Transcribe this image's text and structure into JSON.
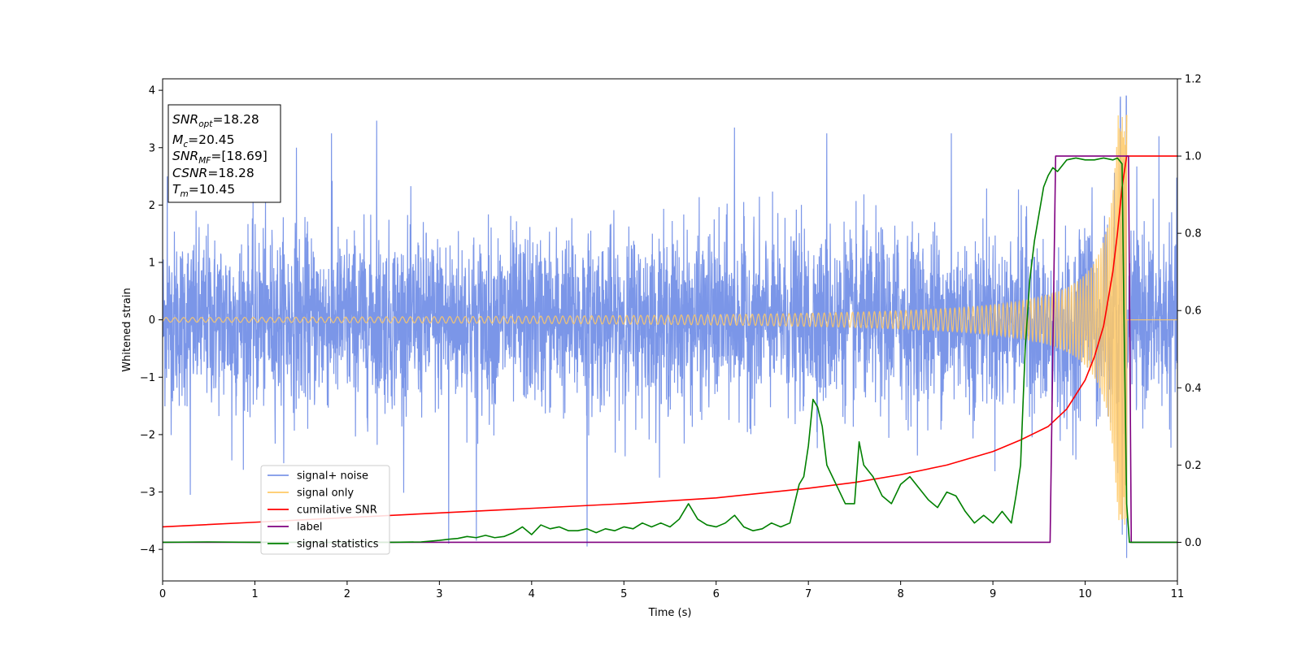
{
  "chart_data": {
    "type": "line",
    "title": "",
    "xlabel": "Time (s)",
    "ylabel": "Whitened strain",
    "y2label": "",
    "xlim": [
      0,
      11
    ],
    "ylim": [
      -4.55,
      4.2
    ],
    "y2lim": [
      -0.1,
      1.2
    ],
    "xticks": [
      0,
      1,
      2,
      3,
      4,
      5,
      6,
      7,
      8,
      9,
      10,
      11
    ],
    "yticks": [
      -4,
      -3,
      -2,
      -1,
      0,
      1,
      2,
      3,
      4
    ],
    "y2ticks": [
      "0.0",
      "0.2",
      "0.4",
      "0.6",
      "0.8",
      "1.0",
      "1.2"
    ],
    "grid": false,
    "legend_position": "lower-left",
    "annotation": {
      "lines": [
        {
          "main": "SNR",
          "sub": "opt",
          "rest": "=18.28"
        },
        {
          "main": "M",
          "sub": "c",
          "rest": "=20.45"
        },
        {
          "main": "SNR",
          "sub": "MF",
          "rest": "=[18.69]"
        },
        {
          "main": "CSNR",
          "sub": "",
          "rest": "=18.28"
        },
        {
          "main": "T",
          "sub": "m",
          "rest": "=10.45"
        }
      ]
    },
    "series": [
      {
        "name": "signal+ noise",
        "axis": "left",
        "color": "#7b96e8",
        "kind": "noise",
        "envelope_std": 0.75,
        "outlier_peaks": [
          [
            0.05,
            2.5
          ],
          [
            0.3,
            -3.05
          ],
          [
            0.75,
            -2.45
          ],
          [
            1.45,
            3.0
          ],
          [
            1.83,
            3.25
          ],
          [
            2.32,
            3.47
          ],
          [
            3.1,
            -3.9
          ],
          [
            3.4,
            3.0
          ],
          [
            3.4,
            -3.85
          ],
          [
            4.6,
            -3.95
          ],
          [
            6.2,
            3.35
          ],
          [
            7.2,
            3.25
          ],
          [
            8.55,
            3.25
          ],
          [
            10.38,
            3.82
          ],
          [
            10.45,
            -4.15
          ],
          [
            10.8,
            3.2
          ]
        ],
        "source_samples": 8192
      },
      {
        "name": "signal only",
        "axis": "left",
        "color": "#ffc966",
        "kind": "chirp",
        "merger_time": 10.45,
        "peak_amplitude": 3.57,
        "base_amplitude": 0.04
      },
      {
        "name": "cumilative SNR",
        "axis": "right",
        "color": "#ff0000",
        "x": [
          0,
          1,
          2,
          3,
          4,
          5,
          6,
          7,
          7.5,
          8,
          8.5,
          9,
          9.3,
          9.6,
          9.8,
          10.0,
          10.1,
          10.2,
          10.3,
          10.35,
          10.4,
          10.45,
          10.5,
          11
        ],
        "values": [
          0.04,
          0.052,
          0.064,
          0.076,
          0.088,
          0.1,
          0.115,
          0.14,
          0.155,
          0.175,
          0.2,
          0.235,
          0.265,
          0.3,
          0.345,
          0.42,
          0.48,
          0.56,
          0.7,
          0.8,
          0.92,
          1.0,
          1.0,
          1.0
        ]
      },
      {
        "name": "label",
        "axis": "right",
        "color": "#800080",
        "x": [
          0,
          9.62,
          9.68,
          10.47,
          10.5,
          11
        ],
        "values": [
          0,
          0,
          1.0,
          1.0,
          0,
          0
        ]
      },
      {
        "name": "signal statistics",
        "axis": "right",
        "color": "#008000",
        "x": [
          0,
          0.5,
          1,
          1.5,
          2,
          2.5,
          2.8,
          3.0,
          3.1,
          3.2,
          3.3,
          3.4,
          3.5,
          3.6,
          3.7,
          3.8,
          3.9,
          4.0,
          4.1,
          4.2,
          4.3,
          4.4,
          4.5,
          4.6,
          4.7,
          4.8,
          4.9,
          5.0,
          5.1,
          5.2,
          5.3,
          5.4,
          5.5,
          5.6,
          5.7,
          5.8,
          5.9,
          6.0,
          6.1,
          6.2,
          6.3,
          6.4,
          6.5,
          6.6,
          6.7,
          6.8,
          6.9,
          6.95,
          7.0,
          7.05,
          7.1,
          7.15,
          7.2,
          7.3,
          7.4,
          7.5,
          7.55,
          7.6,
          7.7,
          7.8,
          7.9,
          8.0,
          8.1,
          8.2,
          8.3,
          8.4,
          8.5,
          8.6,
          8.7,
          8.8,
          8.9,
          9.0,
          9.1,
          9.2,
          9.25,
          9.3,
          9.35,
          9.4,
          9.45,
          9.5,
          9.55,
          9.6,
          9.65,
          9.7,
          9.8,
          9.9,
          10.0,
          10.1,
          10.2,
          10.3,
          10.35,
          10.4,
          10.42,
          10.45,
          10.48,
          10.5,
          10.6,
          11
        ],
        "values": [
          0.0,
          0.001,
          0.0,
          0.0,
          0.0,
          0.0,
          0.001,
          0.005,
          0.008,
          0.01,
          0.015,
          0.012,
          0.018,
          0.012,
          0.015,
          0.025,
          0.04,
          0.02,
          0.045,
          0.035,
          0.04,
          0.03,
          0.03,
          0.035,
          0.025,
          0.035,
          0.03,
          0.04,
          0.035,
          0.05,
          0.04,
          0.05,
          0.04,
          0.06,
          0.1,
          0.06,
          0.045,
          0.04,
          0.05,
          0.07,
          0.04,
          0.03,
          0.035,
          0.05,
          0.04,
          0.05,
          0.15,
          0.17,
          0.25,
          0.37,
          0.35,
          0.3,
          0.2,
          0.15,
          0.1,
          0.1,
          0.26,
          0.2,
          0.17,
          0.12,
          0.1,
          0.15,
          0.17,
          0.14,
          0.11,
          0.09,
          0.13,
          0.12,
          0.08,
          0.05,
          0.07,
          0.05,
          0.08,
          0.05,
          0.12,
          0.2,
          0.5,
          0.68,
          0.78,
          0.85,
          0.92,
          0.95,
          0.97,
          0.96,
          0.99,
          0.995,
          0.99,
          0.99,
          0.995,
          0.99,
          0.995,
          0.98,
          0.6,
          0.1,
          0.0,
          0.0,
          0.0,
          0.0
        ]
      }
    ]
  }
}
